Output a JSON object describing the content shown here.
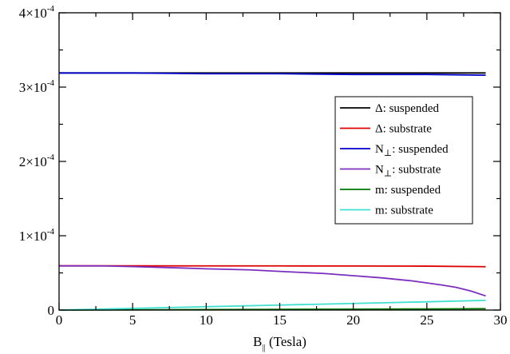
{
  "chart_data": {
    "type": "line",
    "xlabel_main": "B",
    "xlabel_sub": "||",
    "xlabel_rest": " (Tesla)",
    "ylabel": "",
    "title": "",
    "xlim": [
      0,
      30
    ],
    "ylim": [
      0,
      0.0004
    ],
    "xticks": [
      0,
      5,
      10,
      15,
      20,
      25,
      30
    ],
    "xtick_labels": [
      "0",
      "5",
      "10",
      "15",
      "20",
      "25",
      "30"
    ],
    "yticks": [
      {
        "value": 0,
        "label": "0",
        "exp": ""
      },
      {
        "value": 0.0001,
        "label": "1×10",
        "exp": "-4"
      },
      {
        "value": 0.0002,
        "label": "2×10",
        "exp": "-4"
      },
      {
        "value": 0.0003,
        "label": "3×10",
        "exp": "-4"
      },
      {
        "value": 0.0004,
        "label": "4×10",
        "exp": "-4"
      }
    ],
    "grid": false,
    "legend_position": "right",
    "series": [
      {
        "name": "Δ: suspended",
        "label_main": "Δ: suspended",
        "label_sub": "",
        "label_rest": "",
        "color": "#000000",
        "x": [
          0,
          5,
          10,
          15,
          20,
          25,
          29
        ],
        "y": [
          0.000319,
          0.000319,
          0.000319,
          0.000319,
          0.000319,
          0.000319,
          0.000319
        ]
      },
      {
        "name": "Δ: substrate",
        "label_main": "Δ: substrate",
        "label_sub": "",
        "label_rest": "",
        "color": "#dd0000",
        "x": [
          0,
          5,
          10,
          15,
          20,
          25,
          29
        ],
        "y": [
          5.95e-05,
          5.95e-05,
          5.94e-05,
          5.94e-05,
          5.93e-05,
          5.91e-05,
          5.83e-05
        ]
      },
      {
        "name": "N⊥: suspended",
        "label_main": "N",
        "label_sub": "⊥",
        "label_rest": ": suspended",
        "color": "#0000cc",
        "x": [
          0,
          5,
          10,
          15,
          20,
          25,
          29
        ],
        "y": [
          0.000319,
          0.000319,
          0.000318,
          0.000318,
          0.000317,
          0.000317,
          0.000316
        ]
      },
      {
        "name": "N⊥: substrate",
        "label_main": "N",
        "label_sub": "⊥",
        "label_rest": ": substrate",
        "color": "#7b2fbe",
        "x": [
          0,
          3,
          5,
          8,
          10,
          13,
          15,
          18,
          20,
          22,
          24,
          26,
          27,
          28,
          29
        ],
        "y": [
          5.95e-05,
          5.94e-05,
          5.85e-05,
          5.68e-05,
          5.55e-05,
          5.4e-05,
          5.2e-05,
          4.92e-05,
          4.62e-05,
          4.32e-05,
          3.92e-05,
          3.37e-05,
          3.05e-05,
          2.55e-05,
          1.9e-05
        ]
      },
      {
        "name": "m: suspended",
        "label_main": "m: suspended",
        "label_sub": "",
        "label_rest": "",
        "color": "#007700",
        "x": [
          0,
          5,
          10,
          15,
          20,
          25,
          29
        ],
        "y": [
          0,
          3e-07,
          6e-07,
          9e-07,
          1.2e-06,
          1.5e-06,
          1.8e-06
        ]
      },
      {
        "name": "m: substrate",
        "label_main": "m: substrate",
        "label_sub": "",
        "label_rest": "",
        "color": "#40e0d0",
        "x": [
          0,
          5,
          10,
          15,
          20,
          25,
          29
        ],
        "y": [
          0,
          2.2e-06,
          4.5e-06,
          6.7e-06,
          8.9e-06,
          1.11e-05,
          1.3e-05
        ]
      }
    ]
  }
}
